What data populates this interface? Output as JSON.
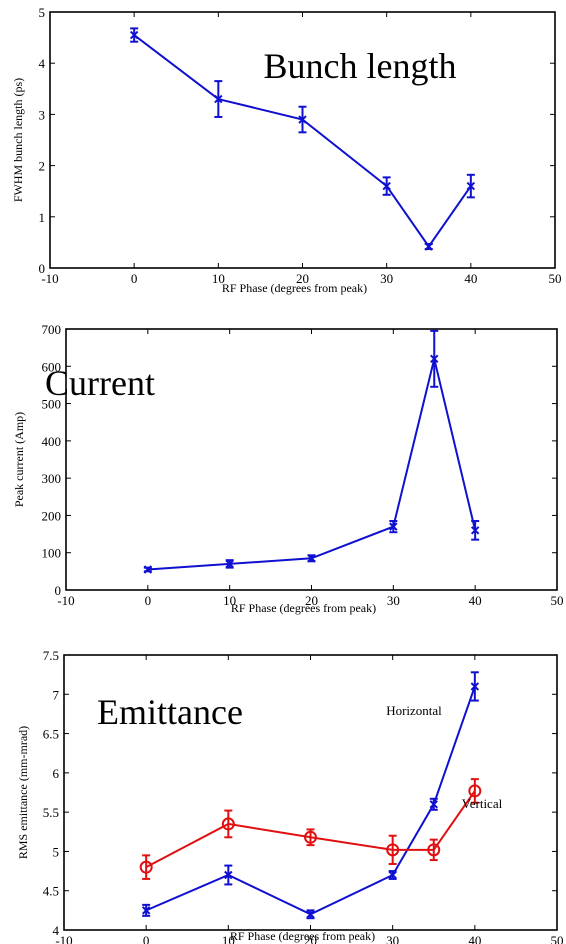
{
  "chart_data": [
    {
      "type": "line",
      "title": "Bunch length",
      "xlabel": "RF Phase (degrees from peak)",
      "ylabel": "FWHM bunch length (ps)",
      "xlim": [
        -10,
        50
      ],
      "ylim": [
        0,
        5
      ],
      "xticks": [
        -10,
        0,
        10,
        20,
        30,
        40,
        50
      ],
      "yticks": [
        0,
        1,
        2,
        3,
        4,
        5
      ],
      "grid": false,
      "series": [
        {
          "color": "#1010d0",
          "marker": "x",
          "x": [
            0,
            10,
            20,
            30,
            35,
            40
          ],
          "y": [
            4.55,
            3.3,
            2.9,
            1.6,
            0.42,
            1.6
          ],
          "err": [
            0.13,
            0.35,
            0.25,
            0.17,
            0.05,
            0.22
          ]
        }
      ]
    },
    {
      "type": "line",
      "title": "Current",
      "xlabel": "RF Phase (degrees from peak)",
      "ylabel": "Peak current (Amp)",
      "xlim": [
        -10,
        50
      ],
      "ylim": [
        0,
        700
      ],
      "xticks": [
        -10,
        0,
        10,
        20,
        30,
        40,
        50
      ],
      "yticks": [
        0,
        100,
        200,
        300,
        400,
        500,
        600,
        700
      ],
      "grid": false,
      "series": [
        {
          "color": "#1010d0",
          "marker": "x",
          "x": [
            0,
            10,
            20,
            30,
            35,
            40
          ],
          "y": [
            55,
            70,
            85,
            170,
            620,
            160
          ],
          "err": [
            5,
            10,
            8,
            15,
            75,
            25
          ]
        }
      ]
    },
    {
      "type": "line",
      "title": "Emittance",
      "xlabel": "RF Phase (degrees from peak)",
      "ylabel": "RMS emittance (mm-mrad)",
      "xlim": [
        -10,
        50
      ],
      "ylim": [
        4,
        7.5
      ],
      "xticks": [
        -10,
        0,
        10,
        20,
        30,
        40,
        50
      ],
      "yticks": [
        4,
        4.5,
        5,
        5.5,
        6,
        6.5,
        7,
        7.5
      ],
      "grid": false,
      "series": [
        {
          "name": "Horizontal",
          "color": "#1010d0",
          "marker": "x",
          "x": [
            0,
            10,
            20,
            30,
            35,
            40
          ],
          "y": [
            4.25,
            4.7,
            4.2,
            4.7,
            5.6,
            7.1
          ],
          "err": [
            0.07,
            0.12,
            0.05,
            0.05,
            0.07,
            0.18
          ]
        },
        {
          "name": "Vertical",
          "color": "#e01010",
          "marker": "o",
          "x": [
            0,
            10,
            20,
            30,
            35,
            40
          ],
          "y": [
            4.8,
            5.35,
            5.18,
            5.02,
            5.02,
            5.77
          ],
          "err": [
            0.15,
            0.17,
            0.1,
            0.18,
            0.13,
            0.15
          ]
        }
      ]
    }
  ]
}
